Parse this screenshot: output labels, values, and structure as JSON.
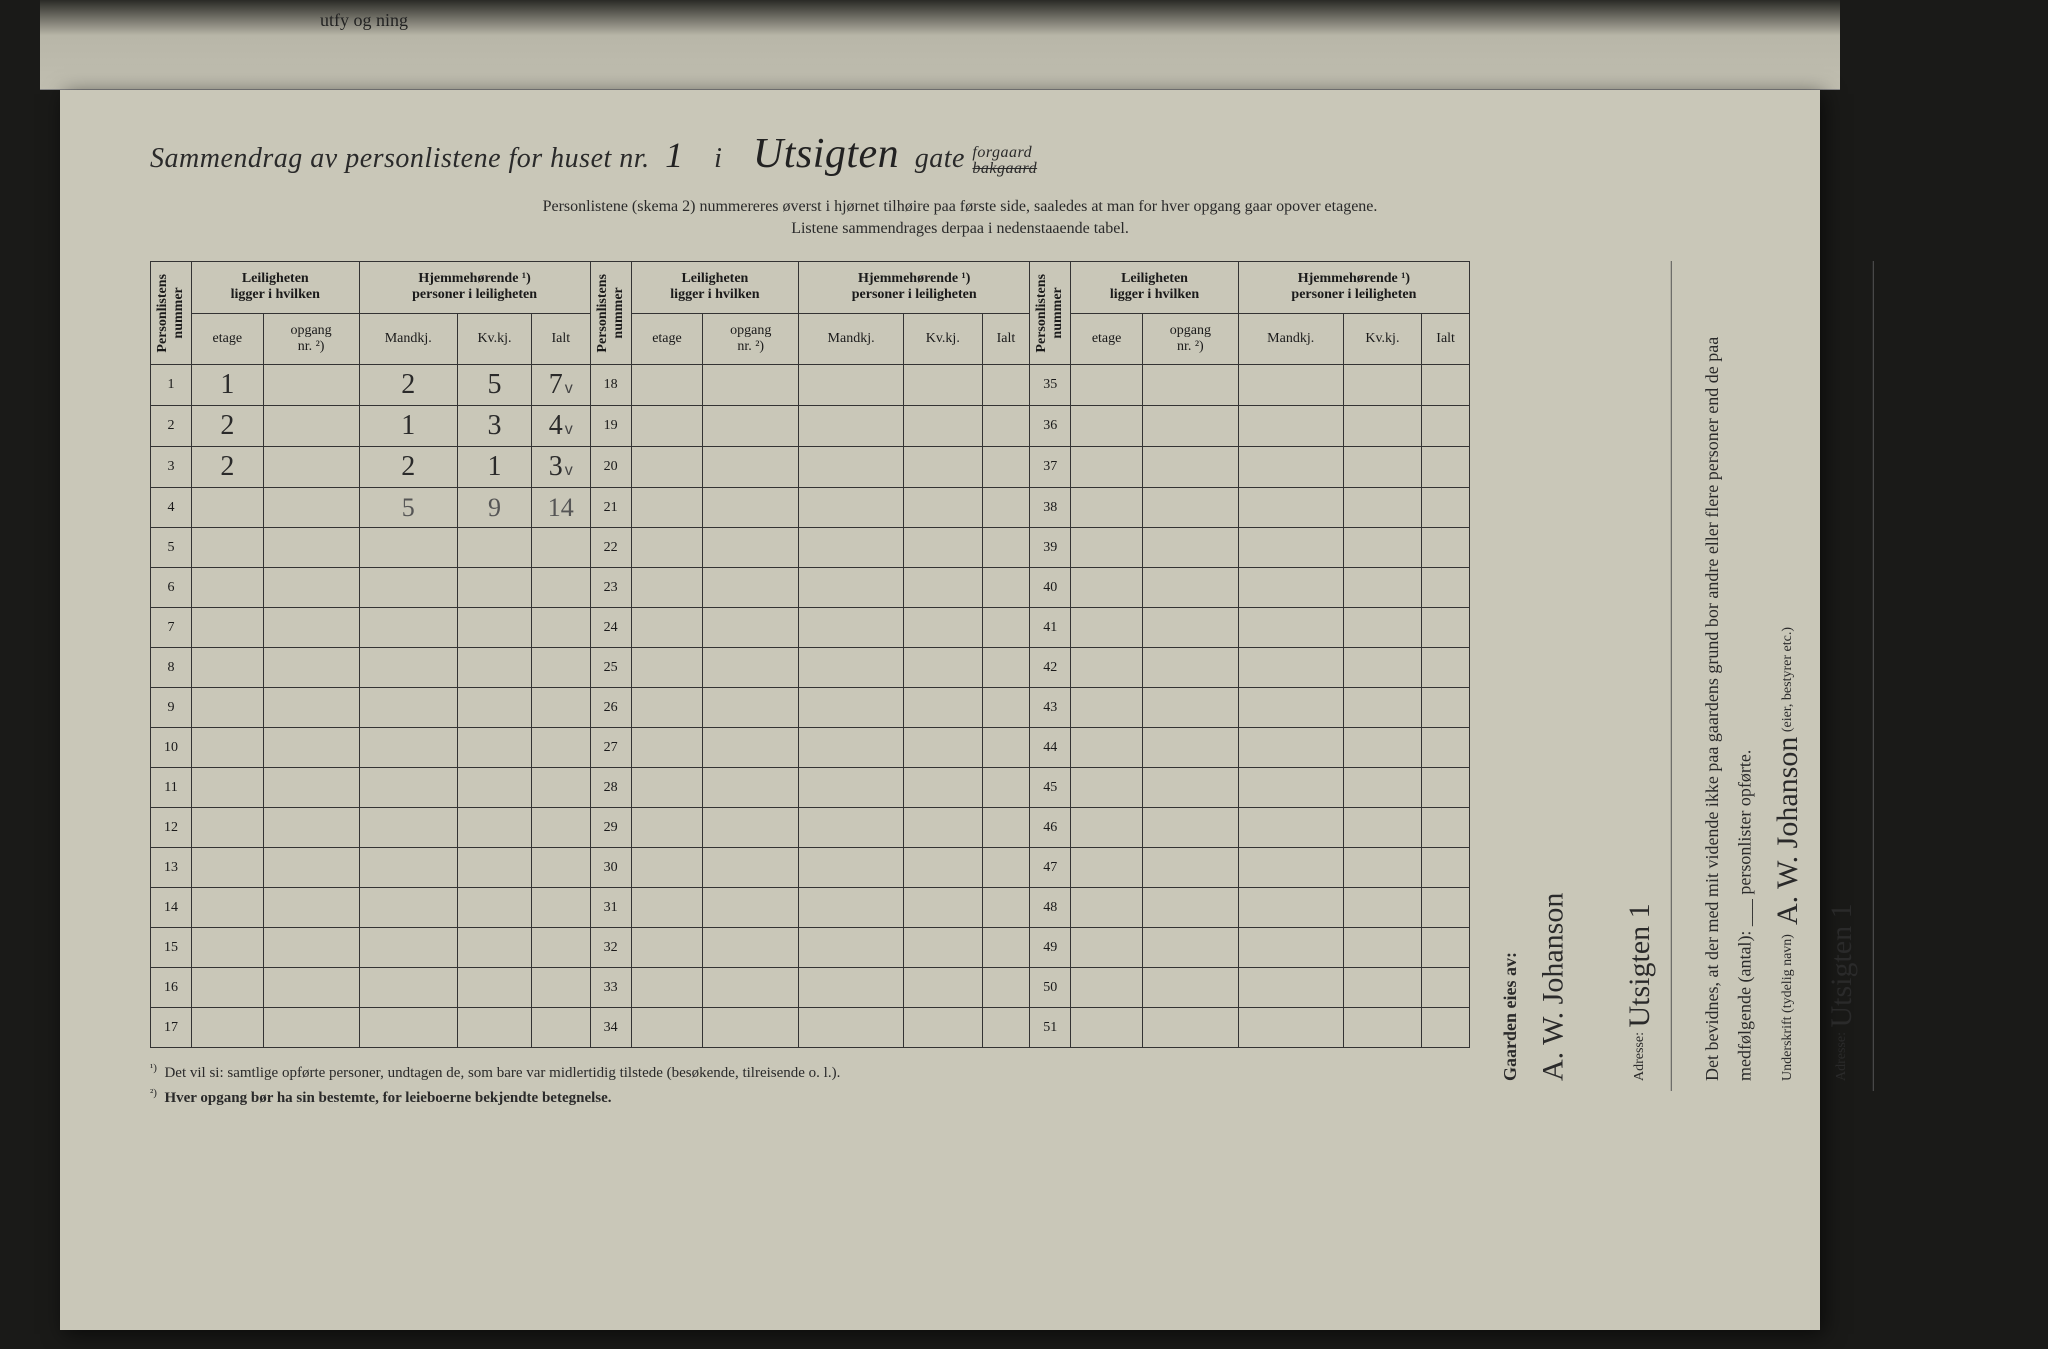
{
  "fold_text": "utfy\nog\nning",
  "title": {
    "prefix": "Sammendrag av personlistene for huset nr.",
    "house_no": "1",
    "mid": "i",
    "street": "Utsigten",
    "gate": "gate",
    "forgaard": "forgaard",
    "bakgaard": "bakgaard"
  },
  "instructions": {
    "line1": "Personlistene (skema 2) nummereres øverst i hjørnet tilhøire paa første side, saaledes at man for hver opgang gaar opover etagene.",
    "line2": "Listene sammendrages derpaa i nedenstaaende tabel."
  },
  "table": {
    "headers": {
      "nummer": "Personlistens\nnummer",
      "leilighet": "Leiligheten\nligger i hvilken",
      "hjemme": "Hjemmehørende ¹)\npersoner i leiligheten",
      "etage": "etage",
      "opgang": "opgang\nnr. ²)",
      "mandkj": "Mandkj.",
      "kvkj": "Kv.kj.",
      "ialt": "Ialt"
    },
    "data_rows": [
      {
        "n": 1,
        "etage": "1",
        "opgang": "",
        "m": "2",
        "k": "5",
        "i": "7",
        "chk": "v"
      },
      {
        "n": 2,
        "etage": "2",
        "opgang": "",
        "m": "1",
        "k": "3",
        "i": "4",
        "chk": "v"
      },
      {
        "n": 3,
        "etage": "2",
        "opgang": "",
        "m": "2",
        "k": "1",
        "i": "3",
        "chk": "v"
      }
    ],
    "totals": {
      "m": "5",
      "k": "9",
      "i": "14"
    },
    "panel1_range": [
      1,
      17
    ],
    "panel2_range": [
      18,
      34
    ],
    "panel3_range": [
      35,
      51
    ]
  },
  "footnotes": {
    "f1": "Det vil si: samtlige opførte personer, undtagen de, som bare var midlertidig tilstede (besøkende, tilreisende o. l.).",
    "f2": "Hver opgang bør ha sin bestemte, for leieboerne bekjendte betegnelse."
  },
  "side": {
    "gaarden": "Gaarden eies av:",
    "owner": "A. W. Johanson",
    "adresse_label": "Adresse:",
    "adresse": "Utsigten 1",
    "bevidnes": "Det bevidnes, at der med mit vidende ikke paa gaardens grund bor andre eller flere personer end de paa medfølgende (antal): ___ personlister opførte.",
    "underskrift_label": "Underskrift (tydelig navn)",
    "underskrift": "A. W. Johanson",
    "eier_label": "(eier, bestyrer etc.)",
    "adresse2": "Utsigten 1"
  }
}
